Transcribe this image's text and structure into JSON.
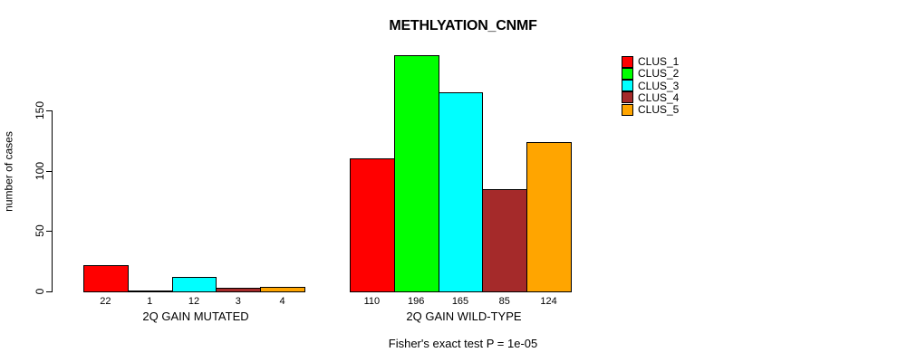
{
  "chart_data": {
    "type": "bar",
    "title": "METHLYATION_CNMF",
    "ylabel": "number of cases",
    "xlabel": "",
    "footer": "Fisher's exact test P = 1e-05",
    "axis": {
      "yticks": [
        0,
        50,
        100,
        150
      ],
      "ylim": [
        0,
        150
      ],
      "grid": false
    },
    "clusters": [
      {
        "name": "CLUS_1",
        "color": "#ff0000"
      },
      {
        "name": "CLUS_2",
        "color": "#00ff00"
      },
      {
        "name": "CLUS_3",
        "color": "#00ffff"
      },
      {
        "name": "CLUS_4",
        "color": "#a52a2a"
      },
      {
        "name": "CLUS_5",
        "color": "#ffa500"
      }
    ],
    "groups": [
      {
        "label": "2Q GAIN MUTATED",
        "values": [
          22,
          1,
          12,
          3,
          4
        ]
      },
      {
        "label": "2Q GAIN WILD-TYPE",
        "values": [
          110,
          196,
          165,
          85,
          124
        ]
      }
    ],
    "legend": {
      "position": "top-right"
    },
    "value_labels_shown": true
  }
}
